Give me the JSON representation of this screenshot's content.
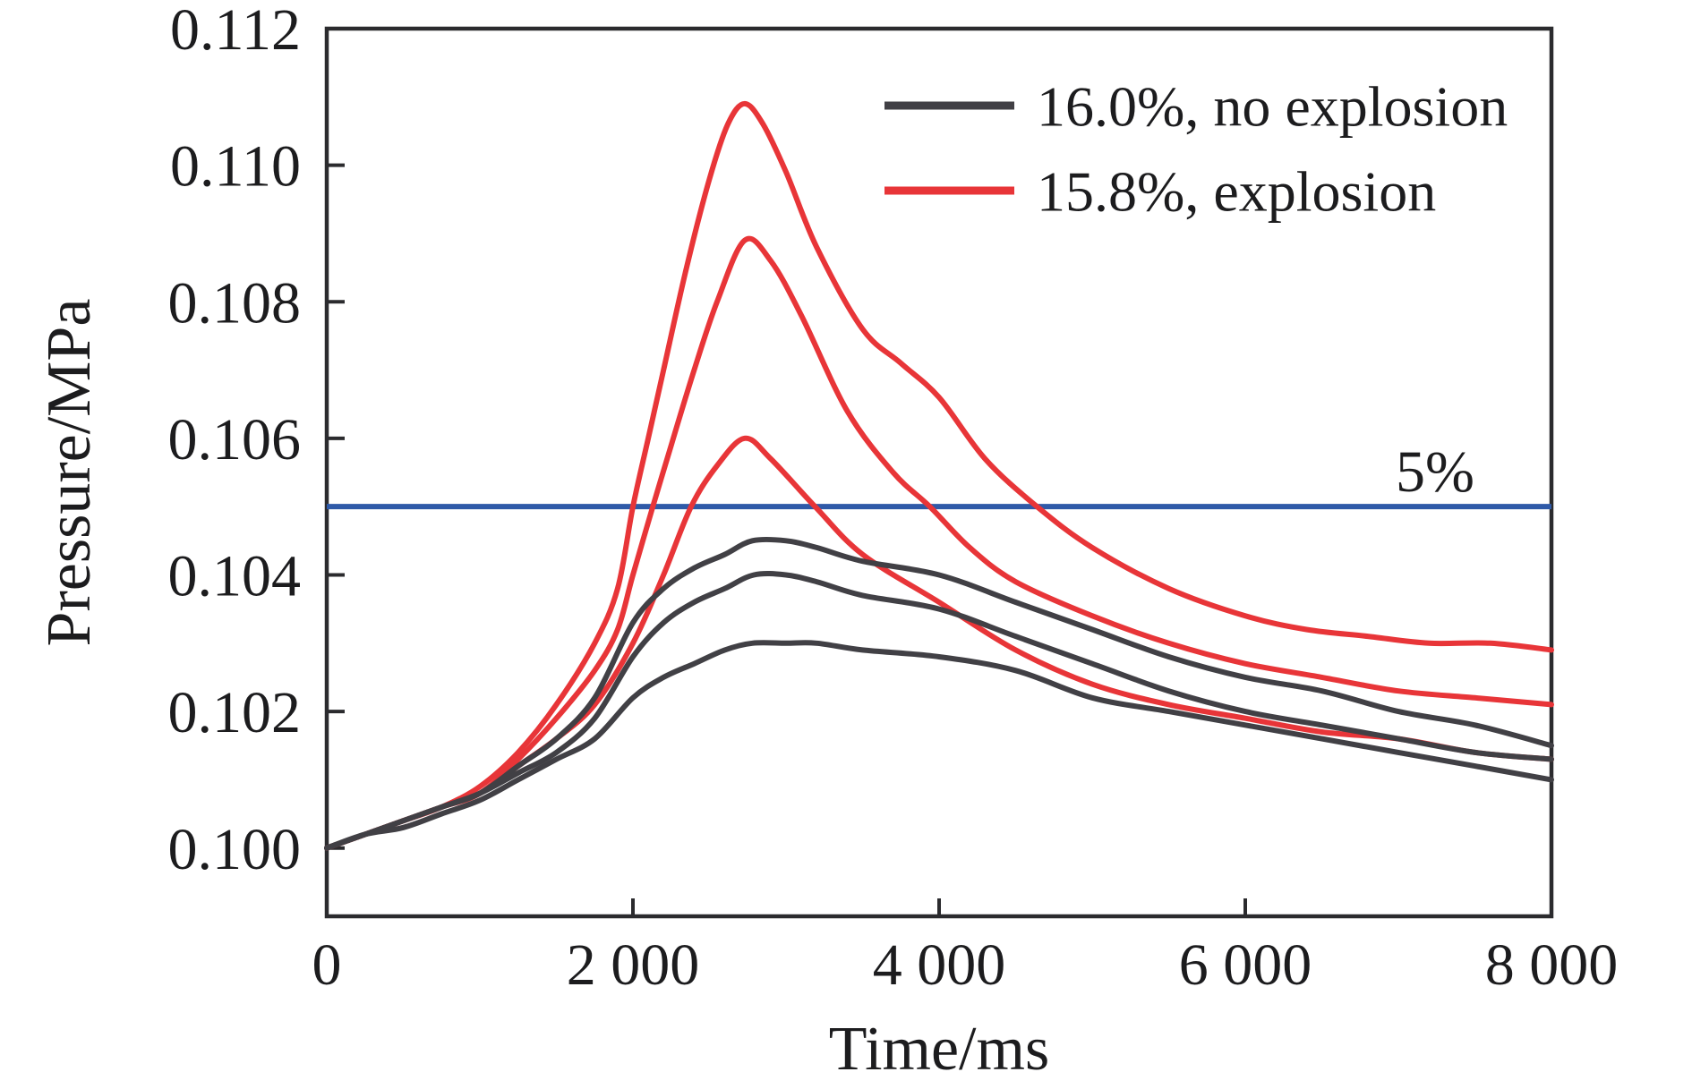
{
  "figure": {
    "background": "#ffffff",
    "frame_color": "#2b2b2e",
    "text_color": "#1c1c1e"
  },
  "chart_data": {
    "type": "line",
    "title": "",
    "xlabel": "Time/ms",
    "ylabel": "Pressure/MPa",
    "xlim": [
      0,
      8000
    ],
    "ylim": [
      0.099,
      0.112
    ],
    "grid": false,
    "legend_position": "upper-right-inside",
    "x_ticks": [
      0,
      2000,
      4000,
      6000,
      8000
    ],
    "x_tick_labels": [
      "0",
      "2 000",
      "4 000",
      "6 000",
      "8 000"
    ],
    "y_ticks": [
      0.1,
      0.102,
      0.104,
      0.106,
      0.108,
      0.11,
      0.112
    ],
    "y_tick_labels": [
      "0.100",
      "0.102",
      "0.104",
      "0.106",
      "0.108",
      "0.110",
      "0.112"
    ],
    "threshold_line": {
      "value": 0.105,
      "color": "#2f5aa8",
      "label": "5%"
    },
    "legend": [
      {
        "label": "16.0%, no explosion",
        "color": "#414045"
      },
      {
        "label": "15.8%, explosion",
        "color": "#e83538"
      }
    ],
    "series": [
      {
        "name": "15.8%, explosion (highest peak)",
        "group": "explosion",
        "color": "#e83538",
        "points": [
          [
            0,
            0.1
          ],
          [
            250,
            0.1002
          ],
          [
            500,
            0.1004
          ],
          [
            750,
            0.1006
          ],
          [
            1000,
            0.1009
          ],
          [
            1250,
            0.1014
          ],
          [
            1500,
            0.1021
          ],
          [
            1750,
            0.103
          ],
          [
            1900,
            0.1038
          ],
          [
            2000,
            0.105
          ],
          [
            2100,
            0.106
          ],
          [
            2200,
            0.107
          ],
          [
            2350,
            0.1085
          ],
          [
            2500,
            0.1098
          ],
          [
            2620,
            0.1106
          ],
          [
            2730,
            0.1109
          ],
          [
            2850,
            0.1106
          ],
          [
            3000,
            0.1099
          ],
          [
            3200,
            0.1088
          ],
          [
            3500,
            0.1076
          ],
          [
            3750,
            0.1071
          ],
          [
            4000,
            0.1066
          ],
          [
            4300,
            0.1057
          ],
          [
            4640,
            0.105
          ],
          [
            5000,
            0.1044
          ],
          [
            5500,
            0.1038
          ],
          [
            6000,
            0.1034
          ],
          [
            6400,
            0.1032
          ],
          [
            6800,
            0.1031
          ],
          [
            7200,
            0.103
          ],
          [
            7600,
            0.103
          ],
          [
            8000,
            0.1029
          ]
        ]
      },
      {
        "name": "15.8%, explosion (middle peak)",
        "group": "explosion",
        "color": "#e83538",
        "points": [
          [
            0,
            0.1
          ],
          [
            250,
            0.1002
          ],
          [
            500,
            0.1004
          ],
          [
            750,
            0.1006
          ],
          [
            1000,
            0.1008
          ],
          [
            1250,
            0.1013
          ],
          [
            1500,
            0.1019
          ],
          [
            1750,
            0.1026
          ],
          [
            1900,
            0.1032
          ],
          [
            2000,
            0.104
          ],
          [
            2130,
            0.105
          ],
          [
            2250,
            0.1059
          ],
          [
            2400,
            0.107
          ],
          [
            2550,
            0.108
          ],
          [
            2730,
            0.1089
          ],
          [
            2900,
            0.1086
          ],
          [
            3100,
            0.1078
          ],
          [
            3400,
            0.1064
          ],
          [
            3700,
            0.1055
          ],
          [
            3940,
            0.105
          ],
          [
            4200,
            0.1044
          ],
          [
            4500,
            0.1039
          ],
          [
            5000,
            0.1034
          ],
          [
            5500,
            0.103
          ],
          [
            6000,
            0.1027
          ],
          [
            6500,
            0.1025
          ],
          [
            7000,
            0.1023
          ],
          [
            7500,
            0.1022
          ],
          [
            8000,
            0.1021
          ]
        ]
      },
      {
        "name": "15.8%, explosion (lowest peak)",
        "group": "explosion",
        "color": "#e83538",
        "points": [
          [
            0,
            0.1
          ],
          [
            250,
            0.1002
          ],
          [
            500,
            0.1004
          ],
          [
            750,
            0.1006
          ],
          [
            1000,
            0.1008
          ],
          [
            1250,
            0.1012
          ],
          [
            1500,
            0.1016
          ],
          [
            1750,
            0.1021
          ],
          [
            2000,
            0.103
          ],
          [
            2200,
            0.104
          ],
          [
            2380,
            0.105
          ],
          [
            2550,
            0.1056
          ],
          [
            2730,
            0.106
          ],
          [
            2900,
            0.1057
          ],
          [
            3190,
            0.105
          ],
          [
            3500,
            0.1043
          ],
          [
            4000,
            0.1036
          ],
          [
            4500,
            0.1029
          ],
          [
            5000,
            0.1024
          ],
          [
            5500,
            0.1021
          ],
          [
            6000,
            0.1019
          ],
          [
            6500,
            0.1017
          ],
          [
            7000,
            0.1016
          ],
          [
            7500,
            0.1014
          ],
          [
            8000,
            0.1013
          ]
        ]
      },
      {
        "name": "16.0%, no explosion (highest peak)",
        "group": "no-explosion",
        "color": "#414045",
        "points": [
          [
            0,
            0.1
          ],
          [
            250,
            0.1002
          ],
          [
            500,
            0.1004
          ],
          [
            750,
            0.1006
          ],
          [
            1000,
            0.1008
          ],
          [
            1250,
            0.1012
          ],
          [
            1500,
            0.1016
          ],
          [
            1750,
            0.1022
          ],
          [
            2000,
            0.1033
          ],
          [
            2200,
            0.1038
          ],
          [
            2400,
            0.1041
          ],
          [
            2600,
            0.1043
          ],
          [
            2780,
            0.1045
          ],
          [
            3000,
            0.1045
          ],
          [
            3200,
            0.1044
          ],
          [
            3500,
            0.1042
          ],
          [
            4000,
            0.104
          ],
          [
            4500,
            0.1036
          ],
          [
            5000,
            0.1032
          ],
          [
            5500,
            0.1028
          ],
          [
            6000,
            0.1025
          ],
          [
            6500,
            0.1023
          ],
          [
            7000,
            0.102
          ],
          [
            7500,
            0.1018
          ],
          [
            8000,
            0.1015
          ]
        ]
      },
      {
        "name": "16.0%, no explosion (middle peak)",
        "group": "no-explosion",
        "color": "#414045",
        "points": [
          [
            0,
            0.1
          ],
          [
            250,
            0.1002
          ],
          [
            500,
            0.1004
          ],
          [
            750,
            0.1006
          ],
          [
            1000,
            0.1008
          ],
          [
            1250,
            0.1011
          ],
          [
            1500,
            0.1014
          ],
          [
            1750,
            0.1019
          ],
          [
            2000,
            0.1028
          ],
          [
            2200,
            0.1033
          ],
          [
            2400,
            0.1036
          ],
          [
            2600,
            0.1038
          ],
          [
            2790,
            0.104
          ],
          [
            3000,
            0.104
          ],
          [
            3200,
            0.1039
          ],
          [
            3500,
            0.1037
          ],
          [
            4000,
            0.1035
          ],
          [
            4500,
            0.1031
          ],
          [
            5000,
            0.1027
          ],
          [
            5500,
            0.1023
          ],
          [
            6000,
            0.102
          ],
          [
            6500,
            0.1018
          ],
          [
            7000,
            0.1016
          ],
          [
            7500,
            0.1014
          ],
          [
            8000,
            0.1013
          ]
        ]
      },
      {
        "name": "16.0%, no explosion (lowest peak)",
        "group": "no-explosion",
        "color": "#414045",
        "points": [
          [
            0,
            0.1
          ],
          [
            250,
            0.1002
          ],
          [
            500,
            0.1003
          ],
          [
            750,
            0.1005
          ],
          [
            1000,
            0.1007
          ],
          [
            1250,
            0.101
          ],
          [
            1500,
            0.1013
          ],
          [
            1750,
            0.1016
          ],
          [
            2000,
            0.1022
          ],
          [
            2200,
            0.1025
          ],
          [
            2400,
            0.1027
          ],
          [
            2600,
            0.1029
          ],
          [
            2780,
            0.103
          ],
          [
            3000,
            0.103
          ],
          [
            3200,
            0.103
          ],
          [
            3500,
            0.1029
          ],
          [
            4000,
            0.1028
          ],
          [
            4500,
            0.1026
          ],
          [
            5000,
            0.1022
          ],
          [
            5500,
            0.102
          ],
          [
            6000,
            0.1018
          ],
          [
            6500,
            0.1016
          ],
          [
            7000,
            0.1014
          ],
          [
            7500,
            0.1012
          ],
          [
            8000,
            0.101
          ]
        ]
      }
    ]
  }
}
